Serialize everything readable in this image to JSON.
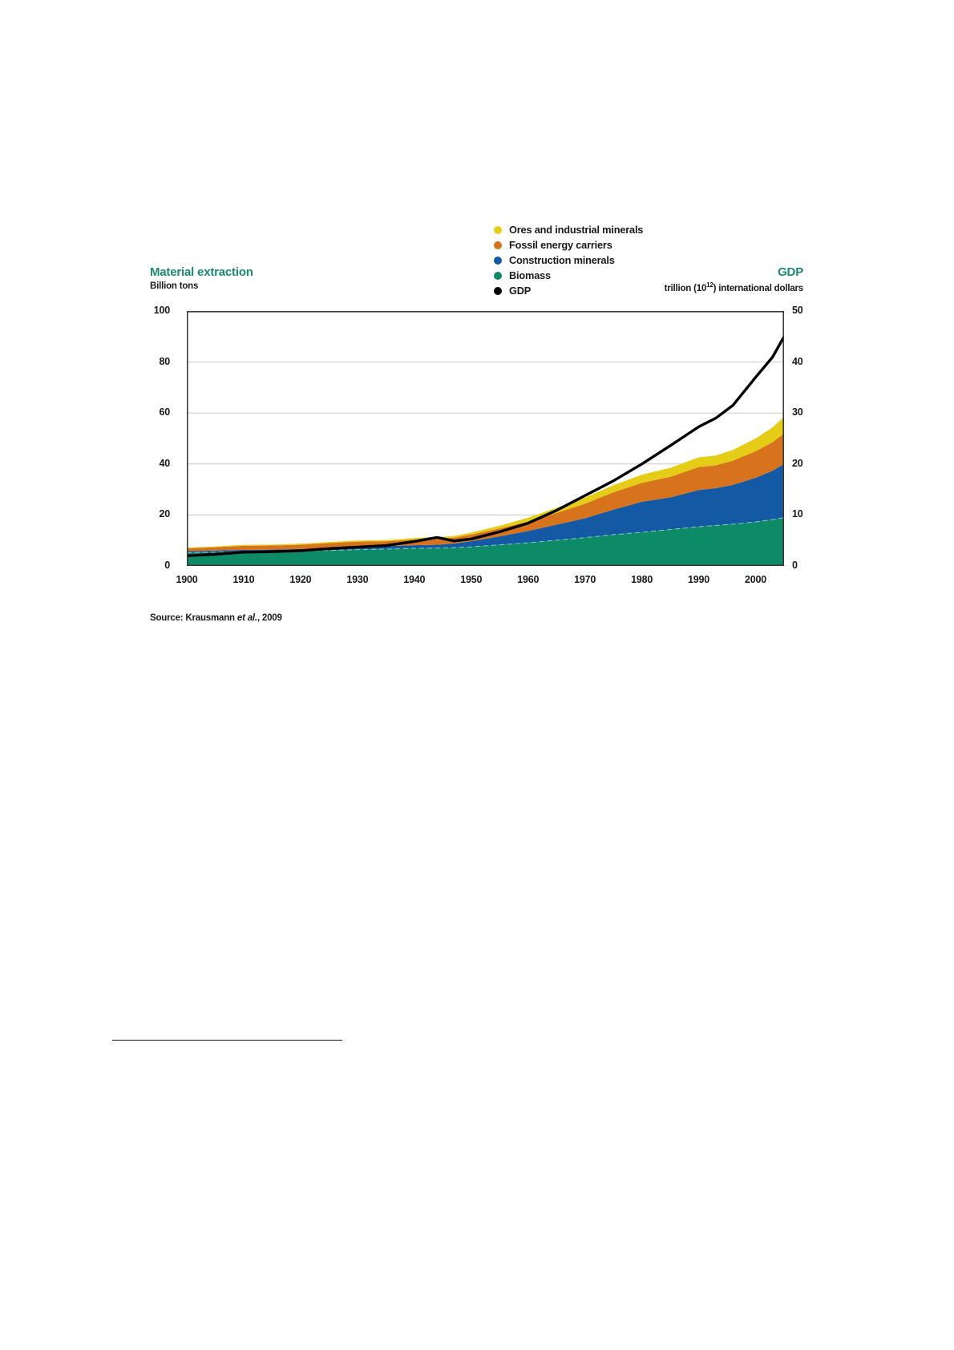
{
  "header_left": {
    "title": "Material extraction",
    "unit": "Billion tons"
  },
  "header_right": {
    "title": "GDP",
    "unit_prefix": "trillion (10",
    "unit_sup": "12",
    "unit_suffix": ") international dollars"
  },
  "legend": {
    "items": [
      {
        "label": "Ores and industrial minerals",
        "color": "#e5cd17"
      },
      {
        "label": "Fossil energy carriers",
        "color": "#d8731d"
      },
      {
        "label": "Construction minerals",
        "color": "#1359a3"
      },
      {
        "label": "Biomass",
        "color": "#0d8a66"
      },
      {
        "label": "GDP",
        "color": "#000000"
      }
    ]
  },
  "source": {
    "prefix": "Source: Krausmann ",
    "italic": "et al.",
    "suffix": ", 2009"
  },
  "chart_data": {
    "type": "area",
    "stacked": true,
    "title": "Material extraction and GDP, 1900-2005",
    "x": [
      1900,
      1905,
      1910,
      1915,
      1920,
      1925,
      1930,
      1935,
      1940,
      1944,
      1947,
      1950,
      1955,
      1960,
      1965,
      1970,
      1975,
      1980,
      1985,
      1990,
      1993,
      1996,
      2000,
      2003,
      2005
    ],
    "series": [
      {
        "name": "Biomass",
        "color": "#0d8a66",
        "values": [
          5.2,
          5.4,
          5.6,
          5.7,
          5.9,
          6.1,
          6.4,
          6.6,
          6.9,
          7.0,
          7.2,
          7.5,
          8.3,
          9.1,
          10.1,
          11.1,
          12.3,
          13.2,
          14.3,
          15.4,
          15.9,
          16.4,
          17.3,
          18.2,
          19.0
        ]
      },
      {
        "name": "Construction minerals",
        "color": "#1359a3",
        "values": [
          0.6,
          0.65,
          0.7,
          0.7,
          0.75,
          0.95,
          1.1,
          1.15,
          1.25,
          1.35,
          1.6,
          2.2,
          3.3,
          4.6,
          6.1,
          7.6,
          9.8,
          12.0,
          12.6,
          14.4,
          14.6,
          15.4,
          17.3,
          19.2,
          21.0
        ]
      },
      {
        "name": "Fossil energy carriers",
        "color": "#d8731d",
        "values": [
          1.1,
          1.3,
          1.6,
          1.6,
          1.7,
          1.9,
          2.0,
          1.95,
          2.2,
          2.3,
          2.3,
          2.6,
          3.1,
          3.7,
          4.6,
          5.7,
          6.8,
          7.4,
          8.1,
          9.0,
          9.0,
          9.5,
          10.4,
          11.2,
          12.0
        ]
      },
      {
        "name": "Ores and industrial minerals",
        "color": "#e5cd17",
        "values": [
          0.3,
          0.33,
          0.38,
          0.38,
          0.4,
          0.45,
          0.5,
          0.5,
          0.6,
          0.7,
          0.65,
          0.8,
          1.1,
          1.5,
          2.0,
          2.4,
          2.8,
          3.2,
          3.5,
          3.8,
          3.8,
          4.2,
          5.0,
          5.8,
          6.5
        ]
      }
    ],
    "line_series": {
      "name": "GDP",
      "color": "#000000",
      "axis": "right",
      "values": [
        2.0,
        2.3,
        2.7,
        2.8,
        3.0,
        3.4,
        3.7,
        4.0,
        4.8,
        5.6,
        4.9,
        5.3,
        6.7,
        8.4,
        10.9,
        13.8,
        16.7,
        20.0,
        23.6,
        27.3,
        29.0,
        31.5,
        37.0,
        41.0,
        45.0
      ]
    },
    "left_axis": {
      "label": "Billion tons",
      "min": 0,
      "max": 100,
      "ticks": [
        100,
        80,
        60,
        40,
        20,
        0
      ]
    },
    "right_axis": {
      "label": "trillion (10^12) international dollars",
      "min": 0,
      "max": 50,
      "ticks": [
        50,
        40,
        30,
        20,
        10,
        0
      ]
    },
    "x_axis": {
      "min": 1900,
      "max": 2005,
      "ticks": [
        1900,
        1910,
        1920,
        1930,
        1940,
        1950,
        1960,
        1970,
        1980,
        1990,
        2000
      ]
    },
    "grid": true,
    "legend_position": "top-right",
    "frame_color": "#3a3a3a",
    "grid_color": "#c8c8c8"
  }
}
